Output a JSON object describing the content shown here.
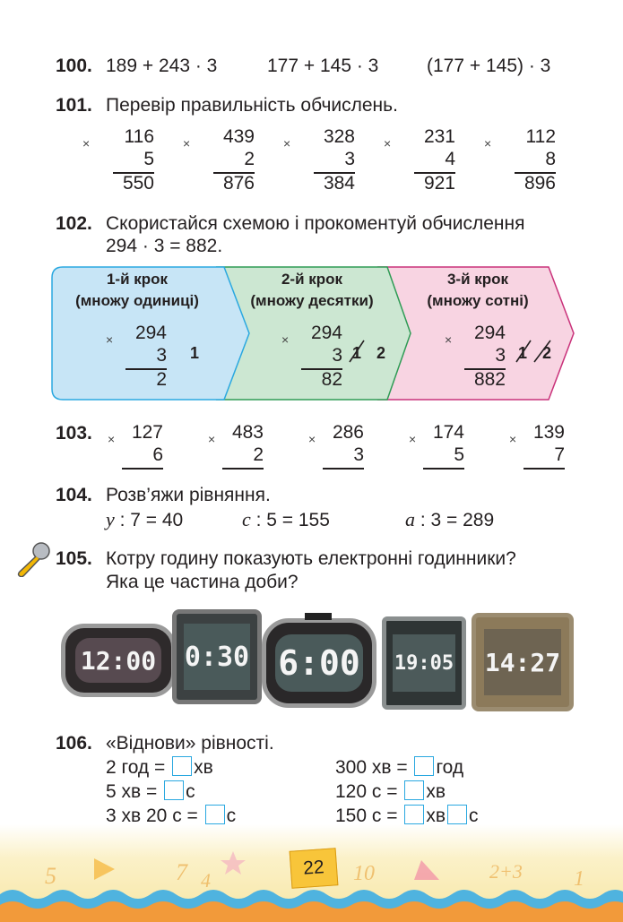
{
  "ex100": {
    "num": "100.",
    "a": "189 + 243 · 3",
    "b": "177 + 145 · 3",
    "c": "(177 + 145) · 3"
  },
  "ex101": {
    "num": "101.",
    "text": "Перевір правильність обчислень.",
    "items": [
      {
        "a": "116",
        "b": "5",
        "r": "550"
      },
      {
        "a": "439",
        "b": "2",
        "r": "876"
      },
      {
        "a": "328",
        "b": "3",
        "r": "384"
      },
      {
        "a": "231",
        "b": "4",
        "r": "921"
      },
      {
        "a": "112",
        "b": "8",
        "r": "896"
      }
    ]
  },
  "ex102": {
    "num": "102.",
    "line1": "Скористайся схемою і прокоментуй обчислення",
    "line2": "294 · 3 = 882.",
    "steps": [
      {
        "t1": "1-й крок",
        "t2": "(множу одиниці)",
        "a": "294",
        "b": "3",
        "r": "2",
        "mark": "1",
        "color": "#c7e5f6"
      },
      {
        "t1": "2-й крок",
        "t2": "(множу десятки)",
        "a": "294",
        "b": "3",
        "r": "82",
        "mark": "1 2",
        "color": "#cce7d2"
      },
      {
        "t1": "3-й крок",
        "t2": "(множу сотні)",
        "a": "294",
        "b": "3",
        "r": "882",
        "mark": "1 2",
        "color": "#f8d4e2"
      }
    ]
  },
  "ex103": {
    "num": "103.",
    "items": [
      {
        "a": "127",
        "b": "6"
      },
      {
        "a": "483",
        "b": "2"
      },
      {
        "a": "286",
        "b": "3"
      },
      {
        "a": "174",
        "b": "5"
      },
      {
        "a": "139",
        "b": "7"
      }
    ]
  },
  "ex104": {
    "num": "104.",
    "text": "Розв’яжи рівняння.",
    "eq": [
      {
        "v": "y",
        "rest": " : 7 = 40"
      },
      {
        "v": "c",
        "rest": " : 5 = 155"
      },
      {
        "v": "a",
        "rest": " : 3 = 289"
      }
    ]
  },
  "ex105": {
    "num": "105.",
    "line1": "Котру годину показують електронні годинники?",
    "line2": "Яка це частина доби?",
    "clocks": [
      "12:00",
      "0:30",
      "6:00",
      "19:05",
      "14:27"
    ]
  },
  "ex106": {
    "num": "106.",
    "text": "«Віднови» рівності.",
    "left": [
      {
        "a": "2 год =",
        "b": "хв"
      },
      {
        "a": "5 хв =",
        "b": "с"
      },
      {
        "a": "3 хв 20 с =",
        "b": "с"
      }
    ],
    "right": [
      {
        "a": "300 хв =",
        "b": "год"
      },
      {
        "a": "120 с =",
        "b": "хв"
      },
      {
        "a": "150 с =",
        "b": "хв",
        "c": "с"
      }
    ]
  },
  "footer": {
    "page": "22",
    "decor": [
      "5",
      "7",
      "4",
      "10",
      "2+3",
      "1"
    ]
  },
  "icons": {
    "microphone": "microphone-icon"
  }
}
